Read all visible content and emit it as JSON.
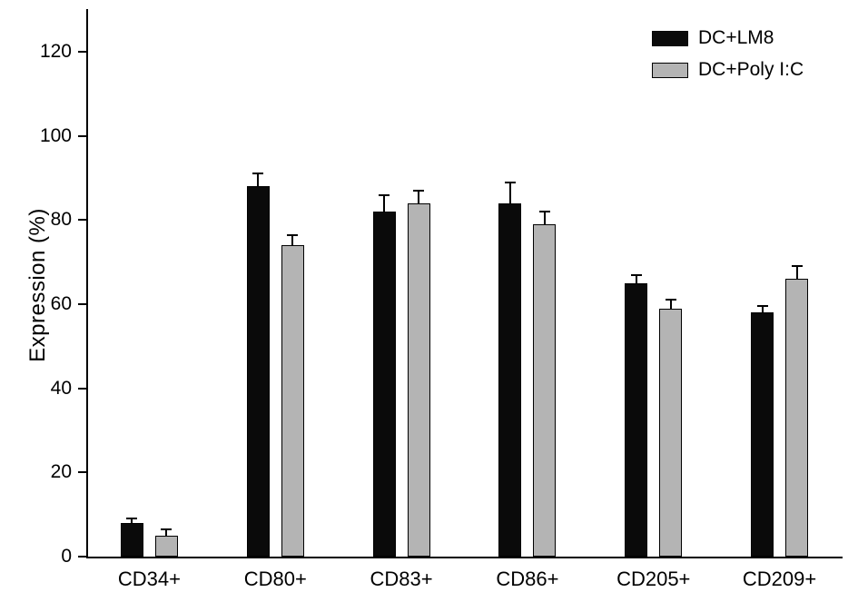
{
  "chart_data": {
    "type": "bar",
    "title": "",
    "xlabel": "",
    "ylabel": "Expression (%)",
    "ylim": [
      0,
      130
    ],
    "yticks": [
      0,
      20,
      40,
      60,
      80,
      100,
      120
    ],
    "grid": false,
    "legend_position": "top-right",
    "categories": [
      "CD34+",
      "CD80+",
      "CD83+",
      "CD86+",
      "CD205+",
      "CD209+"
    ],
    "series": [
      {
        "name": "DC+LM8",
        "color": "#0a0a0a",
        "values": [
          8,
          88,
          82,
          84,
          65,
          58
        ],
        "errors": [
          1,
          3,
          4,
          5,
          2,
          1.5
        ]
      },
      {
        "name": "DC+Poly I:C",
        "color": "#b4b4b4",
        "values": [
          5,
          74,
          84,
          79,
          59,
          66
        ],
        "errors": [
          1.5,
          2.5,
          3,
          3,
          2,
          3
        ]
      }
    ]
  }
}
